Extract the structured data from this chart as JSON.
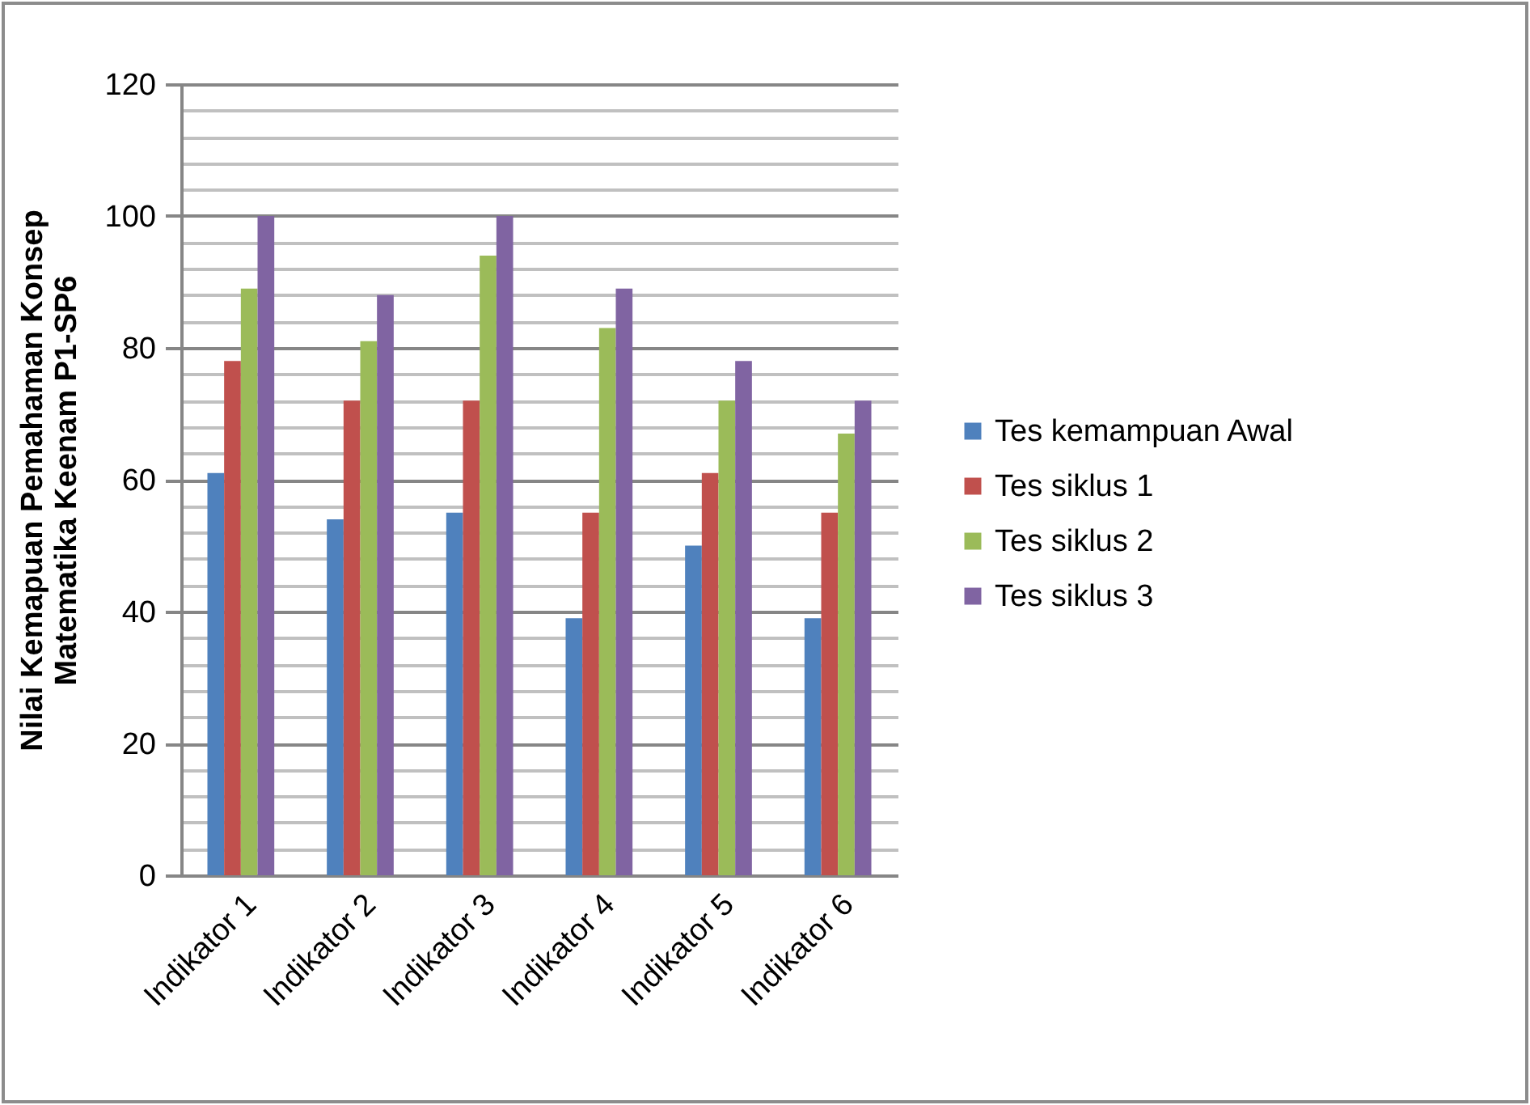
{
  "chart_data": {
    "type": "bar",
    "ylabel": "Nilai Kemapuan Pemahaman Konsep\nMatematika Keenam P1-SP6",
    "categories": [
      "Indikator 1",
      "Indikator 2",
      "Indikator 3",
      "Indikator 4",
      "Indikator 5",
      "Indikator 6"
    ],
    "series": [
      {
        "name": "Tes kemampuan Awal",
        "color": "#4f81bd",
        "values": [
          61,
          54,
          55,
          39,
          50,
          39
        ]
      },
      {
        "name": "Tes siklus 1",
        "color": "#c0504d",
        "values": [
          78,
          72,
          72,
          55,
          61,
          55
        ]
      },
      {
        "name": "Tes siklus 2",
        "color": "#9bbb59",
        "values": [
          89,
          81,
          94,
          83,
          72,
          67
        ]
      },
      {
        "name": "Tes siklus 3",
        "color": "#8064a2",
        "values": [
          100,
          88,
          100,
          89,
          78,
          72
        ]
      }
    ],
    "ylim": [
      0,
      120
    ],
    "yticks": [
      0,
      {
        "value": 4,
        "label": null
      },
      {
        "value": 8,
        "label": null
      },
      {
        "value": 12,
        "label": null
      },
      {
        "value": 16,
        "label": null
      },
      20,
      {
        "value": 24,
        "label": null
      },
      {
        "value": 28,
        "label": null
      },
      {
        "value": 32,
        "label": null
      },
      {
        "value": 36,
        "label": null
      },
      40,
      {
        "value": 44,
        "label": null
      },
      {
        "value": 48,
        "label": null
      },
      {
        "value": 52,
        "label": null
      },
      {
        "value": 56,
        "label": null
      },
      60,
      {
        "value": 64,
        "label": null
      },
      {
        "value": 68,
        "label": null
      },
      {
        "value": 72,
        "label": null
      },
      {
        "value": 76,
        "label": null
      },
      80,
      {
        "value": 84,
        "label": null
      },
      {
        "value": 88,
        "label": null
      },
      {
        "value": 92,
        "label": null
      },
      {
        "value": 96,
        "label": null
      },
      100,
      {
        "value": 104,
        "label": null
      },
      {
        "value": 108,
        "label": null
      },
      {
        "value": 112,
        "label": null
      },
      {
        "value": 116,
        "label": null
      },
      120
    ],
    "grid": true,
    "legend": "right"
  }
}
